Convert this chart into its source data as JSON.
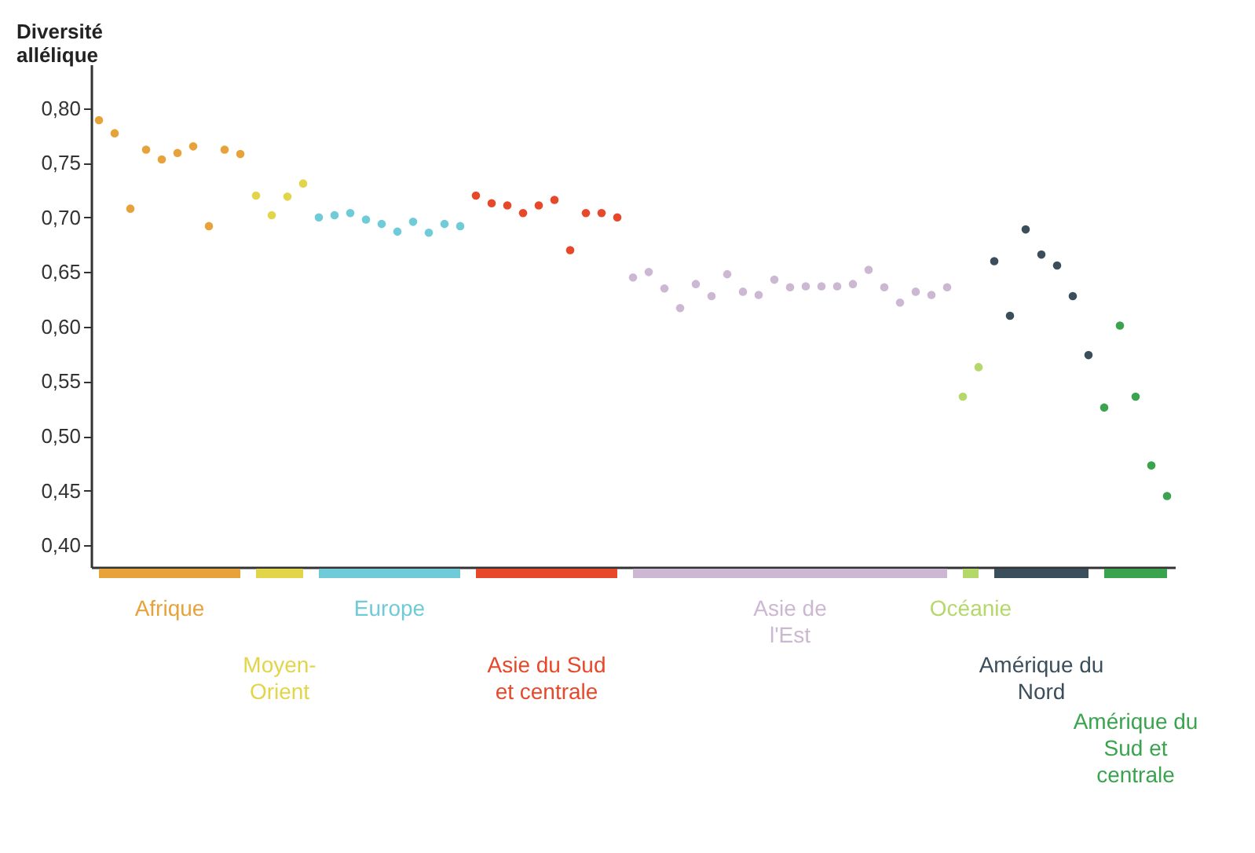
{
  "chart_data": {
    "type": "scatter",
    "ylabel": "Diversité allélique",
    "marker": "circle",
    "tick_labels": "y",
    "grid": false,
    "legend": "bottom",
    "ylim": [
      0.38,
      0.84
    ],
    "yticks": [
      {
        "value": 0.4,
        "label": "0,40"
      },
      {
        "value": 0.45,
        "label": "0,45"
      },
      {
        "value": 0.5,
        "label": "0,50"
      },
      {
        "value": 0.55,
        "label": "0,55"
      },
      {
        "value": 0.6,
        "label": "0,60"
      },
      {
        "value": 0.65,
        "label": "0,65"
      },
      {
        "value": 0.7,
        "label": "0,70"
      },
      {
        "value": 0.75,
        "label": "0,75"
      },
      {
        "value": 0.8,
        "label": "0,80"
      }
    ],
    "categories": [
      null,
      null,
      null,
      null,
      null,
      null,
      null,
      null,
      null,
      null,
      null,
      null,
      null,
      null,
      null,
      null,
      null,
      null,
      null,
      null,
      null,
      null,
      null,
      null,
      null,
      null,
      null,
      null,
      null,
      null,
      null,
      null,
      null,
      null,
      null,
      null,
      null,
      null,
      null,
      null,
      null,
      null,
      null,
      null,
      null,
      null,
      null,
      null,
      null,
      null,
      null,
      null,
      null,
      null,
      null,
      null,
      null,
      null,
      null,
      null,
      null,
      null,
      null,
      null,
      null,
      null,
      null,
      null,
      null
    ],
    "series": [
      {
        "name": "Afrique",
        "color": "#e8a23a",
        "values": [
          0.789,
          0.777,
          0.708,
          0.762,
          0.753,
          0.759,
          0.765,
          0.692,
          0.762,
          0.758,
          null,
          null,
          null,
          null,
          null,
          null,
          null,
          null,
          null,
          null,
          null,
          null,
          null,
          null,
          null,
          null,
          null,
          null,
          null,
          null,
          null,
          null,
          null,
          null,
          null,
          null,
          null,
          null,
          null,
          null,
          null,
          null,
          null,
          null,
          null,
          null,
          null,
          null,
          null,
          null,
          null,
          null,
          null,
          null,
          null,
          null,
          null,
          null,
          null,
          null,
          null,
          null,
          null,
          null,
          null,
          null,
          null,
          null,
          null
        ]
      },
      {
        "name": "Moyen-Orient",
        "color": "#e3d54a",
        "values": [
          null,
          null,
          null,
          null,
          null,
          null,
          null,
          null,
          null,
          null,
          0.72,
          0.702,
          0.719,
          0.731,
          null,
          null,
          null,
          null,
          null,
          null,
          null,
          null,
          null,
          null,
          null,
          null,
          null,
          null,
          null,
          null,
          null,
          null,
          null,
          null,
          null,
          null,
          null,
          null,
          null,
          null,
          null,
          null,
          null,
          null,
          null,
          null,
          null,
          null,
          null,
          null,
          null,
          null,
          null,
          null,
          null,
          null,
          null,
          null,
          null,
          null,
          null,
          null,
          null,
          null,
          null,
          null,
          null,
          null,
          null
        ]
      },
      {
        "name": "Europe",
        "color": "#6fcbd8",
        "values": [
          null,
          null,
          null,
          null,
          null,
          null,
          null,
          null,
          null,
          null,
          null,
          null,
          null,
          null,
          0.7,
          0.702,
          0.704,
          0.698,
          0.694,
          0.687,
          0.696,
          0.686,
          0.694,
          0.692,
          null,
          null,
          null,
          null,
          null,
          null,
          null,
          null,
          null,
          null,
          null,
          null,
          null,
          null,
          null,
          null,
          null,
          null,
          null,
          null,
          null,
          null,
          null,
          null,
          null,
          null,
          null,
          null,
          null,
          null,
          null,
          null,
          null,
          null,
          null,
          null,
          null,
          null,
          null,
          null,
          null,
          null,
          null,
          null,
          null
        ]
      },
      {
        "name": "Asie du Sud et centrale",
        "color": "#e8482a",
        "values": [
          null,
          null,
          null,
          null,
          null,
          null,
          null,
          null,
          null,
          null,
          null,
          null,
          null,
          null,
          null,
          null,
          null,
          null,
          null,
          null,
          null,
          null,
          null,
          null,
          0.72,
          0.713,
          0.711,
          0.704,
          0.711,
          0.716,
          0.67,
          0.704,
          0.704,
          0.7,
          null,
          null,
          null,
          null,
          null,
          null,
          null,
          null,
          null,
          null,
          null,
          null,
          null,
          null,
          null,
          null,
          null,
          null,
          null,
          null,
          null,
          null,
          null,
          null,
          null,
          null,
          null,
          null,
          null,
          null,
          null,
          null,
          null,
          null,
          null
        ]
      },
      {
        "name": "Asie de l'Est",
        "color": "#cdb8d3",
        "values": [
          null,
          null,
          null,
          null,
          null,
          null,
          null,
          null,
          null,
          null,
          null,
          null,
          null,
          null,
          null,
          null,
          null,
          null,
          null,
          null,
          null,
          null,
          null,
          null,
          null,
          null,
          null,
          null,
          null,
          null,
          null,
          null,
          null,
          null,
          0.645,
          0.65,
          0.635,
          0.617,
          0.639,
          0.628,
          0.648,
          0.632,
          0.629,
          0.643,
          0.636,
          0.637,
          0.637,
          0.637,
          0.639,
          0.652,
          0.636,
          0.622,
          0.632,
          0.629,
          0.636,
          null,
          null,
          null,
          null,
          null,
          null,
          null,
          null,
          null,
          null,
          null,
          null,
          null,
          null
        ]
      },
      {
        "name": "Océanie",
        "color": "#b5d86a",
        "values": [
          null,
          null,
          null,
          null,
          null,
          null,
          null,
          null,
          null,
          null,
          null,
          null,
          null,
          null,
          null,
          null,
          null,
          null,
          null,
          null,
          null,
          null,
          null,
          null,
          null,
          null,
          null,
          null,
          null,
          null,
          null,
          null,
          null,
          null,
          null,
          null,
          null,
          null,
          null,
          null,
          null,
          null,
          null,
          null,
          null,
          null,
          null,
          null,
          null,
          null,
          null,
          null,
          null,
          null,
          null,
          0.536,
          0.563,
          null,
          null,
          null,
          null,
          null,
          null,
          null,
          null,
          null,
          null,
          null,
          null
        ]
      },
      {
        "name": "Amérique du Nord",
        "color": "#3a4e5c",
        "values": [
          null,
          null,
          null,
          null,
          null,
          null,
          null,
          null,
          null,
          null,
          null,
          null,
          null,
          null,
          null,
          null,
          null,
          null,
          null,
          null,
          null,
          null,
          null,
          null,
          null,
          null,
          null,
          null,
          null,
          null,
          null,
          null,
          null,
          null,
          null,
          null,
          null,
          null,
          null,
          null,
          null,
          null,
          null,
          null,
          null,
          null,
          null,
          null,
          null,
          null,
          null,
          null,
          null,
          null,
          null,
          null,
          null,
          0.66,
          0.61,
          0.689,
          0.666,
          0.656,
          0.628,
          0.574,
          null,
          null,
          null,
          null,
          null
        ]
      },
      {
        "name": "Amérique du Sud et centrale",
        "color": "#3aa34e",
        "values": [
          null,
          null,
          null,
          null,
          null,
          null,
          null,
          null,
          null,
          null,
          null,
          null,
          null,
          null,
          null,
          null,
          null,
          null,
          null,
          null,
          null,
          null,
          null,
          null,
          null,
          null,
          null,
          null,
          null,
          null,
          null,
          null,
          null,
          null,
          null,
          null,
          null,
          null,
          null,
          null,
          null,
          null,
          null,
          null,
          null,
          null,
          null,
          null,
          null,
          null,
          null,
          null,
          null,
          null,
          null,
          null,
          null,
          null,
          null,
          null,
          null,
          null,
          null,
          null,
          0.526,
          0.601,
          0.536,
          0.473,
          0.445
        ]
      }
    ]
  }
}
